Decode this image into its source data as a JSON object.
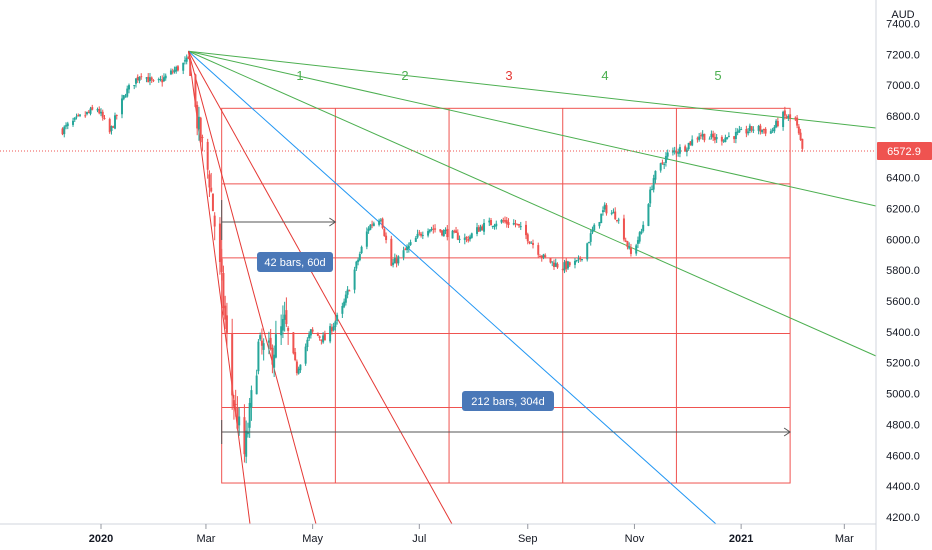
{
  "currency_label": "AUD",
  "colors": {
    "up": "#26a69a",
    "down": "#ef5350",
    "fan_green": "#4caf50",
    "fan_red": "#e53935",
    "fan_blue": "#2196f3",
    "grid_box": "#ef5350",
    "price_tag": "#ef5350",
    "pill": "#4a78b8",
    "arrow": "#555555",
    "axis_text": "#131722"
  },
  "chart_data": {
    "type": "candlestick",
    "instrument_currency": "AUD",
    "last_price": 6572.9,
    "y_range": [
      4150,
      7550
    ],
    "x_range": [
      "2019-12-10",
      "2021-03-20"
    ],
    "y_ticks": [
      "7400.0",
      "7200.0",
      "7000.0",
      "6800.0",
      "6600.0",
      "6400.0",
      "6200.0",
      "6000.0",
      "5800.0",
      "5600.0",
      "5400.0",
      "5200.0",
      "5000.0",
      "4800.0",
      "4600.0",
      "4400.0",
      "4200.0"
    ],
    "x_ticks": [
      {
        "label": "2020",
        "date": "2020-01-01",
        "bold": true
      },
      {
        "label": "Mar",
        "date": "2020-03-01",
        "bold": false
      },
      {
        "label": "May",
        "date": "2020-05-01",
        "bold": false
      },
      {
        "label": "Jul",
        "date": "2020-07-01",
        "bold": false
      },
      {
        "label": "Sep",
        "date": "2020-09-01",
        "bold": false
      },
      {
        "label": "Nov",
        "date": "2020-11-01",
        "bold": false
      },
      {
        "label": "2021",
        "date": "2021-01-01",
        "bold": true
      },
      {
        "label": "Mar",
        "date": "2021-03-01",
        "bold": false
      }
    ],
    "price_path": [
      [
        "2019-12-10",
        6710
      ],
      [
        "2019-12-20",
        6790
      ],
      [
        "2019-12-30",
        6850
      ],
      [
        "2020-01-06",
        6690
      ],
      [
        "2020-01-15",
        6950
      ],
      [
        "2020-01-24",
        7080
      ],
      [
        "2020-02-01",
        7000
      ],
      [
        "2020-02-10",
        7080
      ],
      [
        "2020-02-20",
        7160
      ],
      [
        "2020-02-26",
        6700
      ],
      [
        "2020-03-03",
        6400
      ],
      [
        "2020-03-10",
        5700
      ],
      [
        "2020-03-16",
        5000
      ],
      [
        "2020-03-23",
        4600
      ],
      [
        "2020-03-31",
        5300
      ],
      [
        "2020-04-07",
        5250
      ],
      [
        "2020-04-15",
        5450
      ],
      [
        "2020-04-22",
        5150
      ],
      [
        "2020-04-30",
        5400
      ],
      [
        "2020-05-08",
        5350
      ],
      [
        "2020-05-18",
        5550
      ],
      [
        "2020-05-25",
        5800
      ],
      [
        "2020-06-02",
        6080
      ],
      [
        "2020-06-09",
        6150
      ],
      [
        "2020-06-15",
        5830
      ],
      [
        "2020-06-25",
        5950
      ],
      [
        "2020-07-05",
        6080
      ],
      [
        "2020-07-15",
        6050
      ],
      [
        "2020-07-28",
        6000
      ],
      [
        "2020-08-05",
        6080
      ],
      [
        "2020-08-15",
        6120
      ],
      [
        "2020-08-25",
        6100
      ],
      [
        "2020-09-02",
        6000
      ],
      [
        "2020-09-10",
        5880
      ],
      [
        "2020-09-20",
        5820
      ],
      [
        "2020-09-30",
        5850
      ],
      [
        "2020-10-08",
        6050
      ],
      [
        "2020-10-15",
        6200
      ],
      [
        "2020-10-22",
        6150
      ],
      [
        "2020-10-30",
        5900
      ],
      [
        "2020-11-05",
        6050
      ],
      [
        "2020-11-12",
        6400
      ],
      [
        "2020-11-20",
        6550
      ],
      [
        "2020-11-30",
        6600
      ],
      [
        "2020-12-08",
        6680
      ],
      [
        "2020-12-18",
        6650
      ],
      [
        "2020-12-30",
        6680
      ],
      [
        "2021-01-08",
        6720
      ],
      [
        "2021-01-18",
        6700
      ],
      [
        "2021-01-25",
        6800
      ],
      [
        "2021-02-01",
        6770
      ],
      [
        "2021-02-05",
        6572.9
      ]
    ],
    "gann_box": {
      "start": "2020-03-10",
      "end": "2021-01-29",
      "price_top": 6850,
      "price_bottom": 4420,
      "h_levels": [
        6850,
        6360,
        5880,
        5390,
        4910,
        4420
      ]
    },
    "fan": {
      "origin": [
        "2020-02-20",
        7220
      ],
      "labels": [
        {
          "text": "1",
          "color": "green"
        },
        {
          "text": "2",
          "color": "green"
        },
        {
          "text": "3",
          "color": "red"
        },
        {
          "text": "4",
          "color": "green"
        },
        {
          "text": "5",
          "color": "green"
        }
      ]
    },
    "annotations": [
      {
        "text": "42 bars, 60d",
        "kind": "date-range"
      },
      {
        "text": "212 bars, 304d",
        "kind": "date-range"
      }
    ]
  }
}
